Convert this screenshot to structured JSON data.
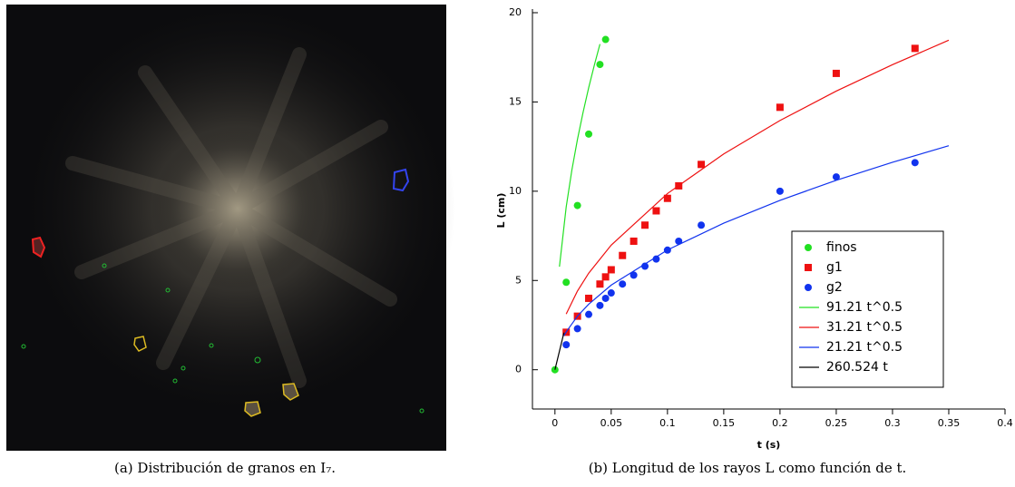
{
  "chart_data": {
    "type": "scatter",
    "xlabel": "t (s)",
    "ylabel": "L (cm)",
    "xlim": [
      -0.02,
      0.4
    ],
    "xticks": [
      0,
      0.05,
      0.1,
      0.15,
      0.2,
      0.25,
      0.3,
      0.35,
      0.4
    ],
    "ylim": [
      -2.2,
      20
    ],
    "yticks": [
      0,
      5,
      10,
      15,
      20
    ],
    "legend": "lower-right",
    "series": [
      {
        "name": "finos",
        "color": "#22e022",
        "mode": "markers",
        "marker": "circle",
        "x": [
          0,
          0.01,
          0.02,
          0.03,
          0.04,
          0.045
        ],
        "values": [
          0,
          4.9,
          9.2,
          13.2,
          17.1,
          18.5
        ]
      },
      {
        "name": "g1",
        "color": "#ee1111",
        "mode": "markers",
        "marker": "square",
        "x": [
          0.01,
          0.02,
          0.03,
          0.04,
          0.045,
          0.05,
          0.06,
          0.07,
          0.08,
          0.09,
          0.1,
          0.11,
          0.13,
          0.2,
          0.25,
          0.32
        ],
        "values": [
          2.1,
          3,
          4,
          4.8,
          5.2,
          5.6,
          6.4,
          7.2,
          8.1,
          8.9,
          9.6,
          10.3,
          11.5,
          14.7,
          16.6,
          18
        ]
      },
      {
        "name": "g2",
        "color": "#1133ee",
        "mode": "markers",
        "marker": "circle",
        "x": [
          0.01,
          0.02,
          0.03,
          0.04,
          0.045,
          0.05,
          0.06,
          0.07,
          0.08,
          0.09,
          0.1,
          0.11,
          0.13,
          0.2,
          0.25,
          0.32
        ],
        "values": [
          1.4,
          2.3,
          3.1,
          3.6,
          4,
          4.3,
          4.8,
          5.3,
          5.8,
          6.2,
          6.7,
          7.2,
          8.1,
          10,
          10.8,
          11.6
        ]
      },
      {
        "name": "91.21 t^0.5",
        "color": "#22e022",
        "mode": "line",
        "x": [
          0.004,
          0.01,
          0.015,
          0.02,
          0.025,
          0.03,
          0.035,
          0.04
        ],
        "values": [
          5.77,
          9.12,
          11.17,
          12.9,
          14.42,
          15.8,
          17.06,
          18.24
        ]
      },
      {
        "name": "31.21 t^0.5",
        "color": "#ee1111",
        "mode": "line",
        "x": [
          0.01,
          0.02,
          0.03,
          0.05,
          0.1,
          0.15,
          0.2,
          0.25,
          0.3,
          0.35
        ],
        "values": [
          3.12,
          4.41,
          5.41,
          6.98,
          9.87,
          12.09,
          13.96,
          15.61,
          17.09,
          18.46
        ]
      },
      {
        "name": "21.21 t^0.5",
        "color": "#1133ee",
        "mode": "line",
        "x": [
          0.008,
          0.01,
          0.02,
          0.03,
          0.05,
          0.1,
          0.15,
          0.2,
          0.25,
          0.3,
          0.35
        ],
        "values": [
          1.9,
          2.12,
          3,
          3.67,
          4.74,
          6.71,
          8.21,
          9.49,
          10.61,
          11.62,
          12.55
        ]
      },
      {
        "name": "260.524 t",
        "color": "#000000",
        "mode": "line",
        "x": [
          0,
          0.008
        ],
        "values": [
          0,
          2.08
        ]
      }
    ]
  },
  "captions": [
    "(a) Distribución de granos en I₇.",
    "(b) Longitud de los rayos L como función de t."
  ]
}
